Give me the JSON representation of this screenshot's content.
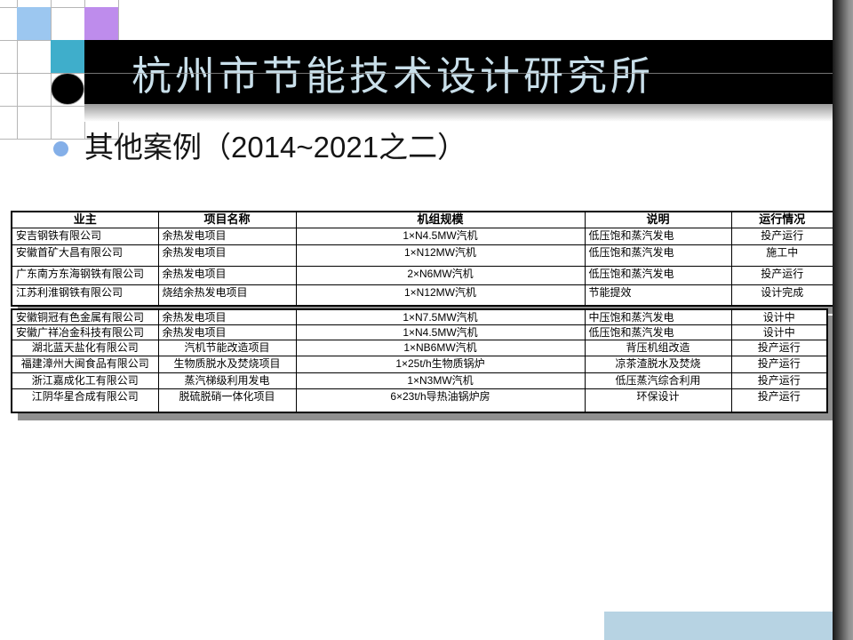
{
  "header": {
    "title": "杭州市节能技术设计研究所"
  },
  "bullet": {
    "prefix": "其他案例（",
    "range": "2014~2021",
    "suffix": "之二）"
  },
  "tables": {
    "columns": [
      "业主",
      "项目名称",
      "机组规模",
      "说明",
      "运行情况"
    ],
    "group1": [
      [
        "安吉钢铁有限公司",
        "余热发电项目",
        "1×N4.5MW汽机",
        "低压饱和蒸汽发电",
        "投产运行"
      ],
      [
        "安徽首矿大昌有限公司",
        "余热发电项目",
        "1×N12MW汽机",
        "低压饱和蒸汽发电",
        "施工中"
      ],
      [
        "广东南方东海钢铁有限公司",
        "余热发电项目",
        "2×N6MW汽机",
        "低压饱和蒸汽发电",
        "投产运行"
      ],
      [
        "江苏利淮钢铁有限公司",
        "烧结余热发电项目",
        "1×N12MW汽机",
        "节能提效",
        "设计完成"
      ]
    ],
    "group2": [
      [
        "安徽铜冠有色金属有限公司",
        "余热发电项目",
        "1×N7.5MW汽机",
        "中压饱和蒸汽发电",
        "设计中"
      ],
      [
        "安徽广祥冶金科技有限公司",
        "余热发电项目",
        "1×N4.5MW汽机",
        "低压饱和蒸汽发电",
        "设计中"
      ],
      [
        "湖北蓝天盐化有限公司",
        "汽机节能改造项目",
        "1×NB6MW汽机",
        "背压机组改造",
        "投产运行"
      ],
      [
        "福建漳州大闽食品有限公司",
        "生物质脱水及焚烧项目",
        "1×25t/h生物质锅炉",
        "凉茶渣脱水及焚烧",
        "投产运行"
      ],
      [
        "浙江嘉成化工有限公司",
        "蒸汽梯级利用发电",
        "1×N3MW汽机",
        "低压蒸汽综合利用",
        "投产运行"
      ],
      [
        "江阴华星合成有限公司",
        "脱硫脱硝一体化项目",
        "6×23t/h导热油锅炉房",
        "环保设计",
        "投产运行"
      ]
    ]
  },
  "colors": {
    "square_blue": "#9CC7F0",
    "square_purple": "#BE8CEC",
    "square_teal": "#3FAECB",
    "title_text": "#C9DFEA",
    "bullet_dot": "#84AFE8",
    "footer_bar": "#B7D3E3"
  }
}
